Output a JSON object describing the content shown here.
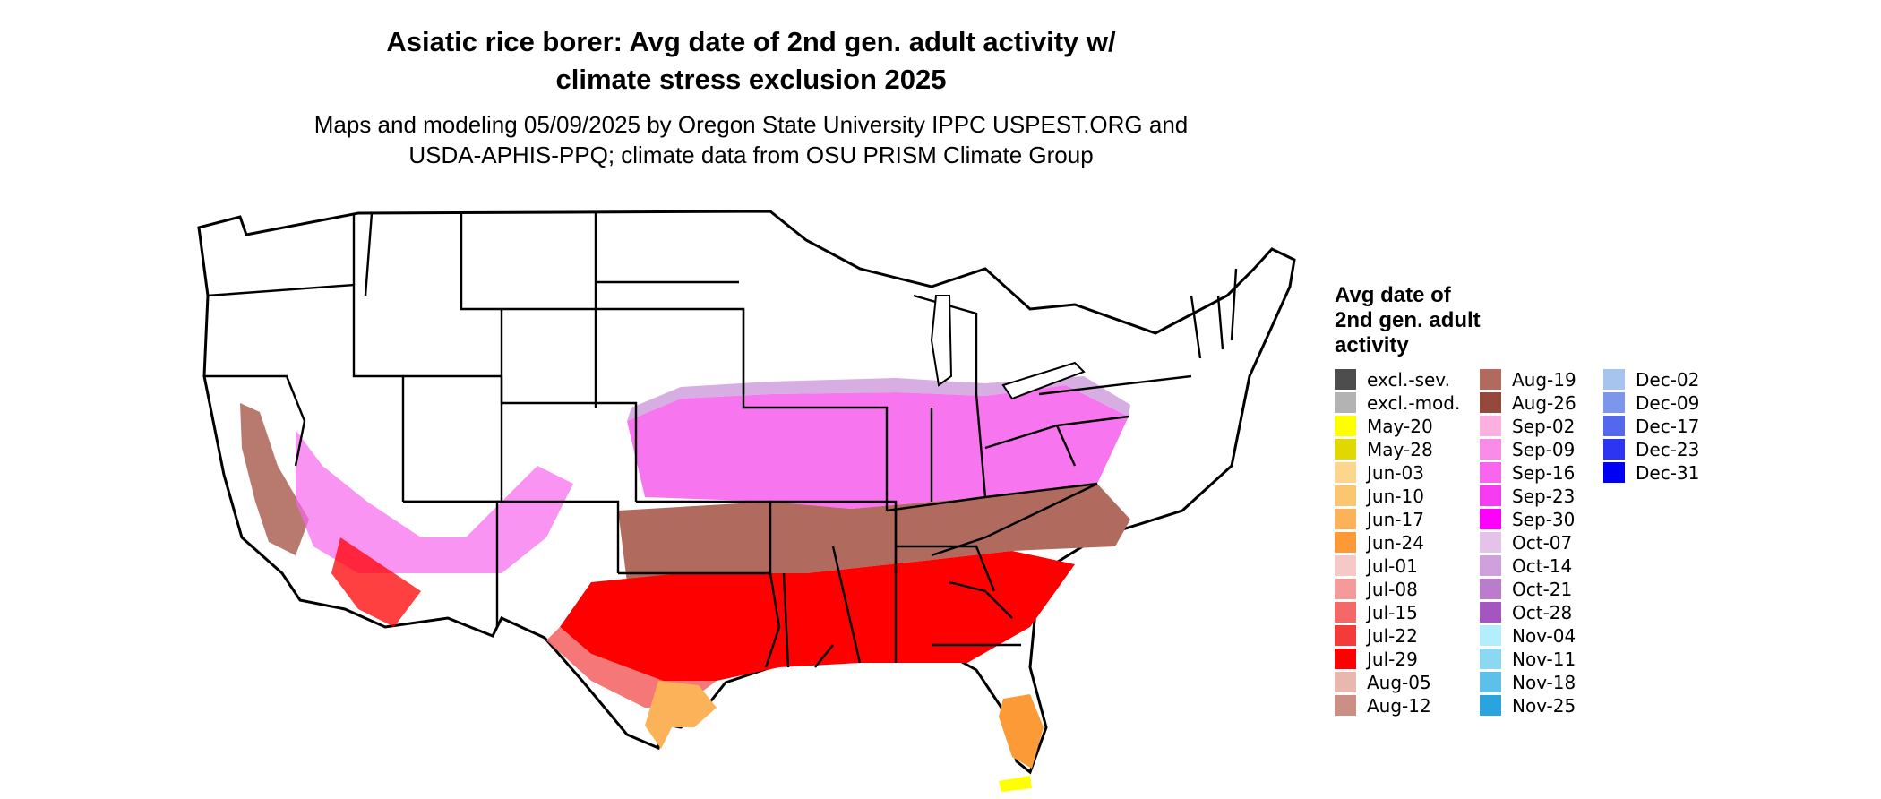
{
  "title_line1": "Asiatic rice borer: Avg date of 2nd gen. adult activity w/",
  "title_line2": "climate stress exclusion 2025",
  "subtitle_line1": "Maps and modeling 05/09/2025 by Oregon State University IPPC USPEST.ORG and",
  "subtitle_line2": "USDA-APHIS-PPQ; climate data from OSU PRISM Climate Group",
  "legend": {
    "title_lines": [
      "Avg date of",
      "2nd gen. adult",
      "activity"
    ],
    "items": [
      {
        "label": "excl.-sev.",
        "color": "#4d4d4d"
      },
      {
        "label": "excl.-mod.",
        "color": "#b3b3b3"
      },
      {
        "label": "May-20",
        "color": "#ffff00"
      },
      {
        "label": "May-28",
        "color": "#e0d800"
      },
      {
        "label": "Jun-03",
        "color": "#fcd68c"
      },
      {
        "label": "Jun-10",
        "color": "#fcc570"
      },
      {
        "label": "Jun-17",
        "color": "#fcb258"
      },
      {
        "label": "Jun-24",
        "color": "#fc9a38"
      },
      {
        "label": "Jul-01",
        "color": "#f7c8c8"
      },
      {
        "label": "Jul-08",
        "color": "#f59a9a"
      },
      {
        "label": "Jul-15",
        "color": "#f56868"
      },
      {
        "label": "Jul-22",
        "color": "#f53a3a"
      },
      {
        "label": "Jul-29",
        "color": "#ff0000"
      },
      {
        "label": "Aug-05",
        "color": "#e8b8b0"
      },
      {
        "label": "Aug-12",
        "color": "#cc8f86"
      },
      {
        "label": "Aug-19",
        "color": "#b06a5e"
      },
      {
        "label": "Aug-26",
        "color": "#96483a"
      },
      {
        "label": "Sep-02",
        "color": "#fbb0e0"
      },
      {
        "label": "Sep-09",
        "color": "#f98ce8"
      },
      {
        "label": "Sep-16",
        "color": "#f766ee"
      },
      {
        "label": "Sep-23",
        "color": "#f53cf2"
      },
      {
        "label": "Sep-30",
        "color": "#ff00ff"
      },
      {
        "label": "Oct-07",
        "color": "#e3c4e8"
      },
      {
        "label": "Oct-14",
        "color": "#cfa0dc"
      },
      {
        "label": "Oct-21",
        "color": "#bb7ccc"
      },
      {
        "label": "Oct-28",
        "color": "#a555bf"
      },
      {
        "label": "Nov-04",
        "color": "#b4eefc"
      },
      {
        "label": "Nov-11",
        "color": "#8cd8f2"
      },
      {
        "label": "Nov-18",
        "color": "#5ebfe8"
      },
      {
        "label": "Nov-25",
        "color": "#2aa4de"
      },
      {
        "label": "Dec-02",
        "color": "#a6c4ee"
      },
      {
        "label": "Dec-09",
        "color": "#7c96ec"
      },
      {
        "label": "Dec-17",
        "color": "#5468ee"
      },
      {
        "label": "Dec-23",
        "color": "#2c36f2"
      },
      {
        "label": "Dec-31",
        "color": "#0000f5"
      }
    ]
  },
  "map_regions": [
    {
      "name": "southern-tier",
      "color": "#ff0000"
    },
    {
      "name": "gulf-coast-texas",
      "color": "#fcb258"
    },
    {
      "name": "gulf-coast-florida",
      "color": "#fc9a38"
    },
    {
      "name": "south-tip-florida",
      "color": "#ffff00"
    },
    {
      "name": "mid-south-band",
      "color": "#b06a5e"
    },
    {
      "name": "ohio-valley",
      "color": "#f766ee"
    },
    {
      "name": "northern-fringe",
      "color": "#cfa0dc"
    },
    {
      "name": "california-valley",
      "color": "#b06a5e"
    },
    {
      "name": "west-desert",
      "color": "#f766ee"
    }
  ]
}
